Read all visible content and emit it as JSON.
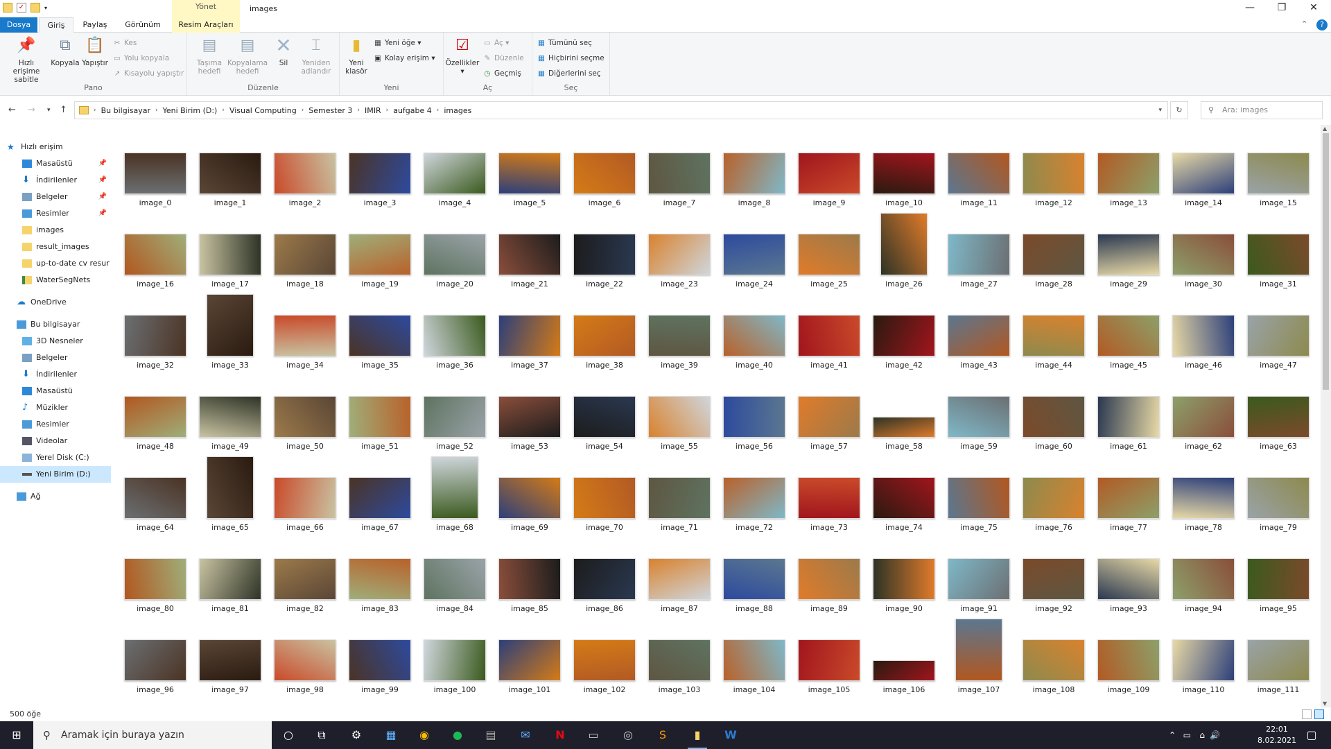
{
  "window": {
    "title": "images",
    "contextual_tab": "Yönet",
    "minimize": "—",
    "maximize": "❐",
    "close": "✕"
  },
  "tabs": {
    "file": "Dosya",
    "home": "Giriş",
    "share": "Paylaş",
    "view": "Görünüm",
    "picture_tools": "Resim Araçları"
  },
  "ribbon": {
    "pano": {
      "label": "Pano",
      "pin": "Hızlı erişime sabitle",
      "pin_l1": "Hızlı erişime",
      "pin_l2": "sabitle",
      "copy": "Kopyala",
      "paste": "Yapıştır",
      "cut": "Kes",
      "copy_path": "Yolu kopyala",
      "paste_shortcut": "Kısayolu yapıştır"
    },
    "duzenle": {
      "label": "Düzenle",
      "move_l1": "Taşıma",
      "move_l2": "hedefi",
      "copy_l1": "Kopyalama",
      "copy_l2": "hedefi",
      "delete": "Sil",
      "rename_l1": "Yeniden",
      "rename_l2": "adlandır"
    },
    "yeni": {
      "label": "Yeni",
      "new_folder_l1": "Yeni",
      "new_folder_l2": "klasör",
      "new_item": "Yeni öğe",
      "easy_access": "Kolay erişim"
    },
    "ac": {
      "label": "Aç",
      "properties": "Özellikler",
      "open": "Aç",
      "edit": "Düzenle",
      "history": "Geçmiş"
    },
    "sec": {
      "label": "Seç",
      "select_all": "Tümünü seç",
      "select_none": "Hiçbirini seçme",
      "invert": "Diğerlerini seç"
    }
  },
  "address": {
    "crumbs": [
      "Bu bilgisayar",
      "Yeni Birim (D:)",
      "Visual Computing",
      "Semester 3",
      "IMIR",
      "aufgabe 4",
      "images"
    ],
    "search_placeholder": "Ara: images"
  },
  "nav": {
    "quick": "Hızlı erişim",
    "quick_items": [
      "Masaüstü",
      "İndirilenler",
      "Belgeler",
      "Resimler",
      "images",
      "result_images",
      "up-to-date cv resur",
      "WaterSegNets"
    ],
    "onedrive": "OneDrive",
    "pc": "Bu bilgisayar",
    "pc_items": [
      "3D Nesneler",
      "Belgeler",
      "İndirilenler",
      "Masaüstü",
      "Müzikler",
      "Resimler",
      "Videolar",
      "Yerel Disk (C:)",
      "Yeni Birim (D:)"
    ],
    "network": "Ağ"
  },
  "status": "500 öğe",
  "taskbar": {
    "search_placeholder": "Aramak için buraya yazın",
    "time": "22:01",
    "date": "8.02.2021"
  },
  "file_prefix": "image_",
  "file_count_visible": 112
}
